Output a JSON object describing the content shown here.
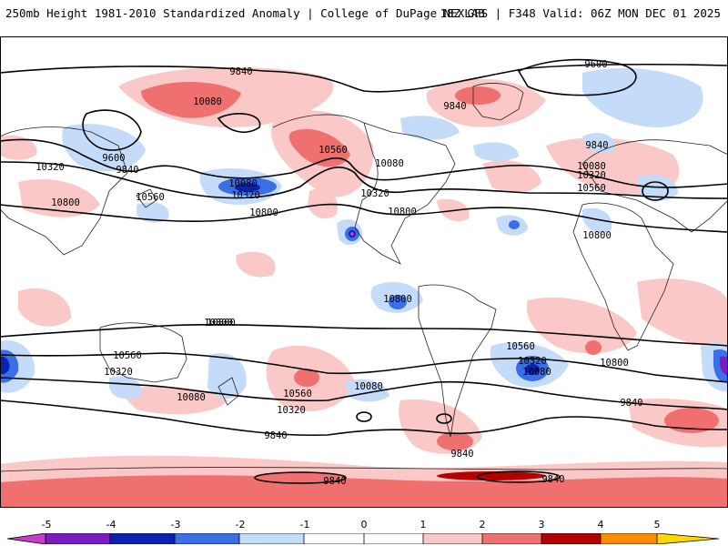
{
  "header": {
    "title": "250mb Height 1981-2010 Standardized Anomaly | College of DuPage NEXLAB",
    "run_info": "18Z GFS | F348 Valid: 06Z MON DEC 01 2025"
  },
  "map": {
    "projection": "global cylindrical equidistant",
    "contour_labels": {
      "l1": "9840",
      "l2": "9600",
      "l3": "10080",
      "l4": "9840",
      "l5": "9600",
      "l6": "9840",
      "l7": "10320",
      "l8": "10560",
      "l9": "10080",
      "l10": "10320",
      "l11": "10800",
      "l12": "10800",
      "l13": "10560",
      "l14": "10080",
      "l15": "10320",
      "l16": "10800",
      "l17": "9840",
      "l18": "10080",
      "l19": "10320",
      "l20": "10560",
      "l21": "10800",
      "l22": "10800",
      "l23": "10800",
      "l24": "10800",
      "l25": "10560",
      "l26": "10320",
      "l27": "10080",
      "l28": "10560",
      "l29": "10320",
      "l30": "10080",
      "l31": "9840",
      "l32": "10560",
      "l33": "10320",
      "l34": "10080",
      "l35": "10800",
      "l36": "9840",
      "l37": "9840",
      "l38": "9840",
      "l39": "9840"
    }
  },
  "legend": {
    "ticks": [
      "-5",
      "-4",
      "-3",
      "-2",
      "-1",
      "0",
      "1",
      "2",
      "3",
      "4",
      "5"
    ],
    "colors": {
      "neg5": "#c83cc8",
      "neg4": "#7a1cc0",
      "neg3": "#0a22b4",
      "neg2": "#3c6ee6",
      "neg1": "#c4dcfa",
      "neg0": "#ffffff",
      "pos0": "#ffffff",
      "pos1": "#fbc8c8",
      "pos2": "#f07070",
      "pos3": "#b40000",
      "pos4": "#ff8c00",
      "pos5": "#ffd700"
    }
  }
}
